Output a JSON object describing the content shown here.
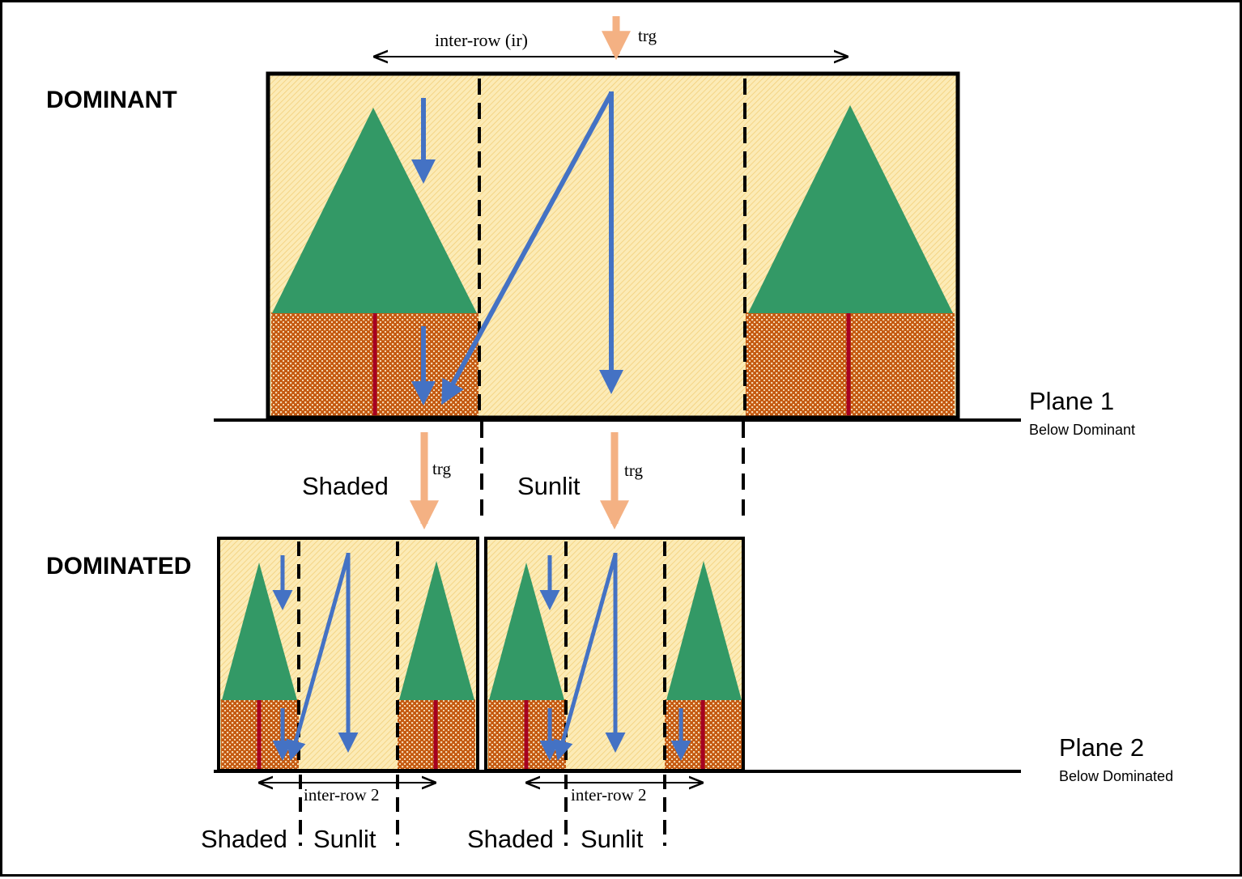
{
  "labels": {
    "dominant": "DOMINANT",
    "dominated": "DOMINATED",
    "plane1": "Plane 1",
    "plane1_sub": "Below Dominant",
    "plane2": "Plane 2",
    "plane2_sub": "Below Dominated",
    "inter_row_ir": "inter-row (ir)",
    "trg": "trg",
    "shaded": "Shaded",
    "sunlit": "Sunlit",
    "inter_row_2": "inter-row 2"
  },
  "colors": {
    "canopy_fill": "#FCEBB6",
    "tree_crown": "#339966",
    "trunk": "#A50021",
    "ground_brown": "#C55A11",
    "arrow_blue": "#4472C4",
    "arrow_orange": "#F4B183"
  }
}
